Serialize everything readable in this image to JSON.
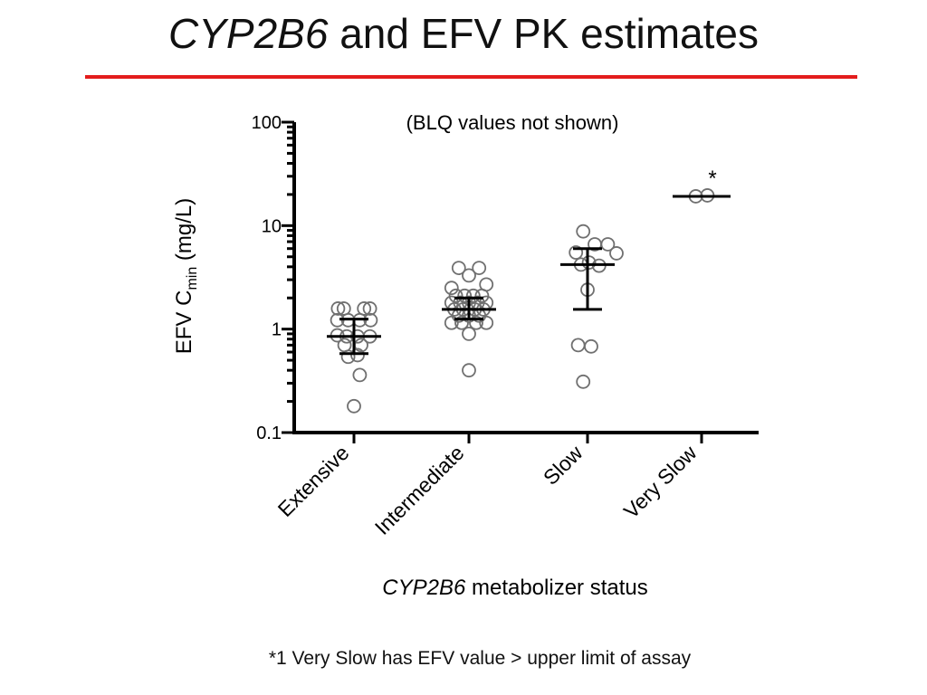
{
  "slide": {
    "title_italic": "CYP2B6",
    "title_rest": " and EFV PK estimates",
    "footnote": "*1 Very Slow has EFV value > upper limit of assay",
    "accent_color": "#e31c1c"
  },
  "chart_data": {
    "type": "scatter",
    "title": "",
    "subtitle": "(BLQ values not shown)",
    "ylabel_prefix": "EFV C",
    "ylabel_subscript": "min",
    "ylabel_suffix": " (mg/L)",
    "xlabel_italic": "CYP2B6",
    "xlabel_rest": " metabolizer status",
    "y_scale": "log",
    "ylim": [
      0.1,
      100
    ],
    "y_ticks": [
      {
        "value": 0.1,
        "label": "0.1"
      },
      {
        "value": 1,
        "label": "1"
      },
      {
        "value": 10,
        "label": "10"
      },
      {
        "value": 100,
        "label": "100"
      }
    ],
    "grid": false,
    "legend": "none",
    "categories": [
      "Extensive",
      "Intermediate",
      "Slow",
      "Very Slow"
    ],
    "groups": [
      {
        "category": "Extensive",
        "median": 0.85,
        "q1": 0.58,
        "q3": 1.25,
        "points": [
          {
            "x": -0.14,
            "y": 1.58
          },
          {
            "x": 0.14,
            "y": 1.58
          },
          {
            "x": -0.22,
            "y": 1.58
          },
          {
            "x": 0.22,
            "y": 1.58
          },
          {
            "x": -0.23,
            "y": 1.22
          },
          {
            "x": -0.08,
            "y": 1.22
          },
          {
            "x": 0.08,
            "y": 1.22
          },
          {
            "x": 0.23,
            "y": 1.22
          },
          {
            "x": -0.23,
            "y": 0.87
          },
          {
            "x": -0.1,
            "y": 0.85
          },
          {
            "x": 0.05,
            "y": 0.85
          },
          {
            "x": 0.22,
            "y": 0.85
          },
          {
            "x": -0.13,
            "y": 0.7
          },
          {
            "x": 0.1,
            "y": 0.7
          },
          {
            "x": -0.08,
            "y": 0.54
          },
          {
            "x": 0.05,
            "y": 0.56
          },
          {
            "x": 0.08,
            "y": 0.36
          },
          {
            "x": 0.0,
            "y": 0.18
          }
        ]
      },
      {
        "category": "Intermediate",
        "median": 1.55,
        "q1": 1.25,
        "q3": 2.0,
        "points": [
          {
            "x": -0.14,
            "y": 3.9
          },
          {
            "x": 0.14,
            "y": 3.9
          },
          {
            "x": 0.0,
            "y": 3.3
          },
          {
            "x": -0.24,
            "y": 2.5
          },
          {
            "x": 0.24,
            "y": 2.7
          },
          {
            "x": -0.18,
            "y": 2.1
          },
          {
            "x": -0.06,
            "y": 2.1
          },
          {
            "x": 0.06,
            "y": 2.1
          },
          {
            "x": 0.18,
            "y": 2.1
          },
          {
            "x": -0.24,
            "y": 1.8
          },
          {
            "x": -0.12,
            "y": 1.8
          },
          {
            "x": 0.0,
            "y": 1.8
          },
          {
            "x": 0.12,
            "y": 1.8
          },
          {
            "x": 0.24,
            "y": 1.8
          },
          {
            "x": -0.2,
            "y": 1.55
          },
          {
            "x": -0.08,
            "y": 1.55
          },
          {
            "x": 0.08,
            "y": 1.55
          },
          {
            "x": 0.2,
            "y": 1.55
          },
          {
            "x": -0.14,
            "y": 1.35
          },
          {
            "x": 0.0,
            "y": 1.35
          },
          {
            "x": 0.14,
            "y": 1.35
          },
          {
            "x": -0.24,
            "y": 1.15
          },
          {
            "x": -0.1,
            "y": 1.15
          },
          {
            "x": 0.1,
            "y": 1.15
          },
          {
            "x": 0.24,
            "y": 1.15
          },
          {
            "x": 0.0,
            "y": 0.9
          },
          {
            "x": 0.0,
            "y": 0.4
          }
        ]
      },
      {
        "category": "Slow",
        "median": 4.2,
        "q1": 1.55,
        "q3": 6.0,
        "points": [
          {
            "x": -0.06,
            "y": 8.8
          },
          {
            "x": 0.1,
            "y": 6.6
          },
          {
            "x": 0.28,
            "y": 6.6
          },
          {
            "x": -0.16,
            "y": 5.5
          },
          {
            "x": 0.4,
            "y": 5.4
          },
          {
            "x": 0.02,
            "y": 4.4
          },
          {
            "x": -0.09,
            "y": 4.2
          },
          {
            "x": 0.16,
            "y": 4.1
          },
          {
            "x": 0.0,
            "y": 2.4
          },
          {
            "x": -0.13,
            "y": 0.7
          },
          {
            "x": 0.05,
            "y": 0.68
          },
          {
            "x": -0.06,
            "y": 0.31
          }
        ]
      },
      {
        "category": "Very Slow",
        "median": 19.2,
        "points": [
          {
            "x": -0.08,
            "y": 19.2
          },
          {
            "x": 0.08,
            "y": 19.6
          }
        ],
        "annotation": "*"
      }
    ]
  }
}
